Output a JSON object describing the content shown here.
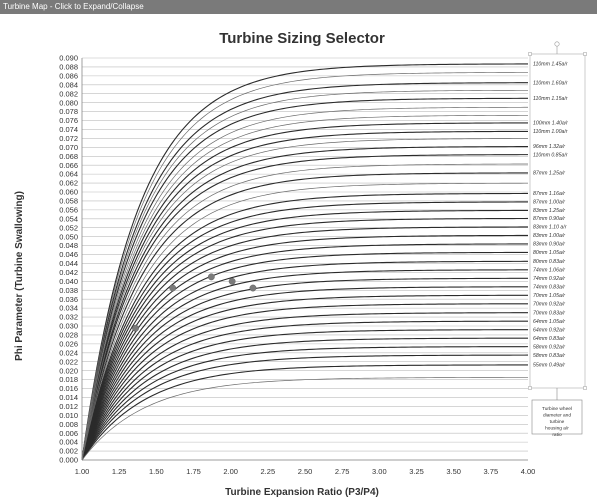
{
  "header": {
    "text": "Turbine Map - Click to Expand/Collapse"
  },
  "chart_data": {
    "type": "line",
    "title": "Turbine Sizing Selector",
    "xlabel": "Turbine Expansion Ratio (P3/P4)",
    "ylabel": "Phi Parameter (Turbine Swallowing)",
    "xlim": [
      1.0,
      4.0
    ],
    "ylim": [
      0.0,
      0.09
    ],
    "x_ticks": [
      "1.00",
      "1.25",
      "1.50",
      "1.75",
      "2.00",
      "2.25",
      "2.50",
      "2.75",
      "3.00",
      "3.25",
      "3.50",
      "3.75",
      "4.00"
    ],
    "y_ticks": [
      "0.000",
      "0.002",
      "0.004",
      "0.006",
      "0.008",
      "0.010",
      "0.012",
      "0.014",
      "0.016",
      "0.018",
      "0.020",
      "0.022",
      "0.024",
      "0.026",
      "0.028",
      "0.030",
      "0.032",
      "0.034",
      "0.036",
      "0.038",
      "0.040",
      "0.042",
      "0.044",
      "0.046",
      "0.048",
      "0.050",
      "0.052",
      "0.054",
      "0.056",
      "0.058",
      "0.060",
      "0.062",
      "0.064",
      "0.066",
      "0.068",
      "0.070",
      "0.072",
      "0.074",
      "0.076",
      "0.078",
      "0.080",
      "0.082",
      "0.084",
      "0.086",
      "0.088",
      "0.090"
    ],
    "grid": "horizontal",
    "series": [
      {
        "name": "110mm 1.45a/r",
        "y_max": 0.0887
      },
      {
        "name": "110mm 1.60a/r",
        "y_max": 0.0845
      },
      {
        "name": "110mm 1.15a/r",
        "y_max": 0.081
      },
      {
        "name": "100mm 1.40a/r",
        "y_max": 0.0755
      },
      {
        "name": "110mm 1.00a/r",
        "y_max": 0.0736
      },
      {
        "name": "96mm 1.32a/r",
        "y_max": 0.0702
      },
      {
        "name": "110mm 0.85a/r",
        "y_max": 0.0684
      },
      {
        "name": "87mm 1.25a/r",
        "y_max": 0.0643
      },
      {
        "name": "87mm 1.16a/r",
        "y_max": 0.0597
      },
      {
        "name": "87mm 1.00a/r",
        "y_max": 0.0578
      },
      {
        "name": "83mm 1.25a/r",
        "y_max": 0.0559
      },
      {
        "name": "87mm 0.90a/r",
        "y_max": 0.0541
      },
      {
        "name": "83mm 1.10 a/r",
        "y_max": 0.0522
      },
      {
        "name": "83mm 1.00a/r",
        "y_max": 0.0503
      },
      {
        "name": "83mm 0.90a/r",
        "y_max": 0.0484
      },
      {
        "name": "80mm 1.05a/r",
        "y_max": 0.0465
      },
      {
        "name": "80mm 0.83a/r",
        "y_max": 0.0445
      },
      {
        "name": "74mm 1.06a/r",
        "y_max": 0.0426
      },
      {
        "name": "74mm 0.92a/r",
        "y_max": 0.0407
      },
      {
        "name": "74mm 0.83a/r",
        "y_max": 0.0388
      },
      {
        "name": "70mm 1.05a/r",
        "y_max": 0.0369
      },
      {
        "name": "70mm 0.92a/r",
        "y_max": 0.035
      },
      {
        "name": "70mm 0.83a/r",
        "y_max": 0.033
      },
      {
        "name": "64mm 1.05a/r",
        "y_max": 0.0311
      },
      {
        "name": "64mm 0.92a/r",
        "y_max": 0.0292
      },
      {
        "name": "64mm 0.83a/r",
        "y_max": 0.0273
      },
      {
        "name": "58mm 0.92a/r",
        "y_max": 0.0254
      },
      {
        "name": "58mm 0.83a/r",
        "y_max": 0.0235
      },
      {
        "name": "55mm 0.49a/r",
        "y_max": 0.0213
      }
    ],
    "extra_curves_y_max": [
      0.0868,
      0.0828,
      0.079,
      0.0772,
      0.072,
      0.0663,
      0.062,
      0.0185
    ],
    "points": [
      {
        "x": 1.36,
        "y": 0.0295
      },
      {
        "x": 1.61,
        "y": 0.0385
      },
      {
        "x": 1.87,
        "y": 0.041
      },
      {
        "x": 2.01,
        "y": 0.04
      },
      {
        "x": 2.15,
        "y": 0.0385
      }
    ],
    "annotation": "Turbine wheel diameter and turbine housing a/r ratio"
  },
  "colors": {
    "curve": "#2b2b2b",
    "grid": "#bdbdbd",
    "point": "#7b7b7b",
    "header": "#7a7a7a"
  }
}
